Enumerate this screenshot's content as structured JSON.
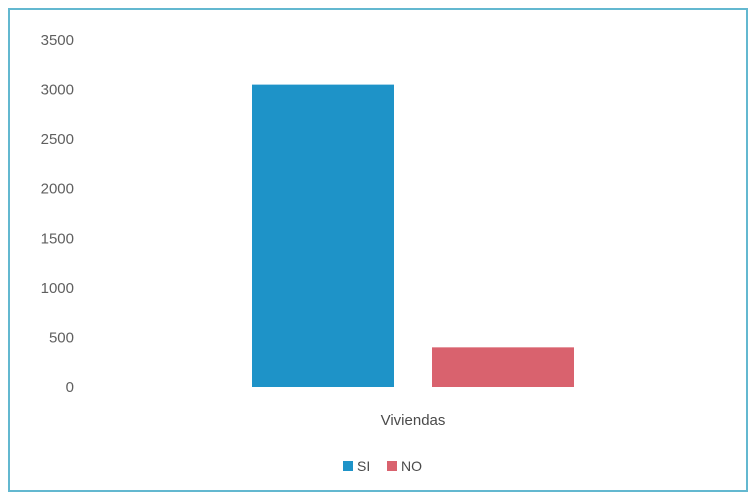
{
  "chart_data": {
    "type": "bar",
    "categories": [
      "Viviendas"
    ],
    "series": [
      {
        "name": "SI",
        "values": [
          3050
        ],
        "color": "#1e93c8"
      },
      {
        "name": "NO",
        "values": [
          400
        ],
        "color": "#d9626e"
      }
    ],
    "yticks": [
      0,
      500,
      1000,
      1500,
      2000,
      2500,
      3000,
      3500
    ],
    "ylim": [
      0,
      3500
    ],
    "grid": false,
    "legend_position": "bottom"
  }
}
